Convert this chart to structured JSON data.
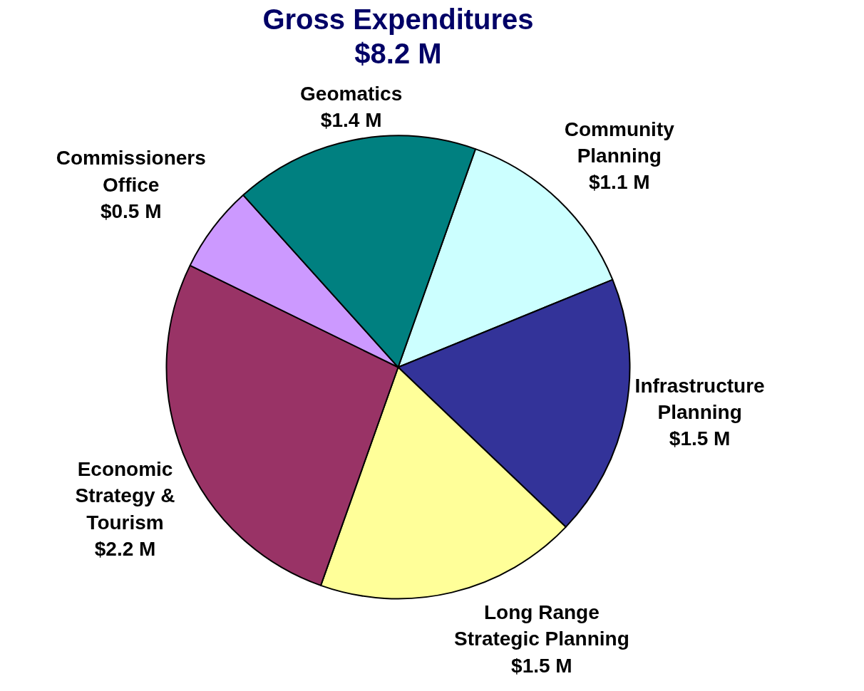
{
  "chart_data": {
    "type": "pie",
    "title": "Gross Expenditures",
    "subtitle": "$8.2 M",
    "categories": [
      "Community\nPlanning",
      "Infrastructure\nPlanning",
      "Long Range\nStrategic Planning",
      "Economic\nStrategy &\nTourism",
      "Commissioners\nOffice",
      "Geomatics"
    ],
    "values": [
      1.1,
      1.5,
      1.5,
      2.2,
      0.5,
      1.4
    ],
    "value_labels": [
      "$1.1 M",
      "$1.5 M",
      "$1.5 M",
      "$2.2 M",
      "$0.5 M",
      "$1.4 M"
    ],
    "colors": [
      "#ccffff",
      "#333399",
      "#ffff99",
      "#993366",
      "#cc99ff",
      "#008080"
    ]
  }
}
